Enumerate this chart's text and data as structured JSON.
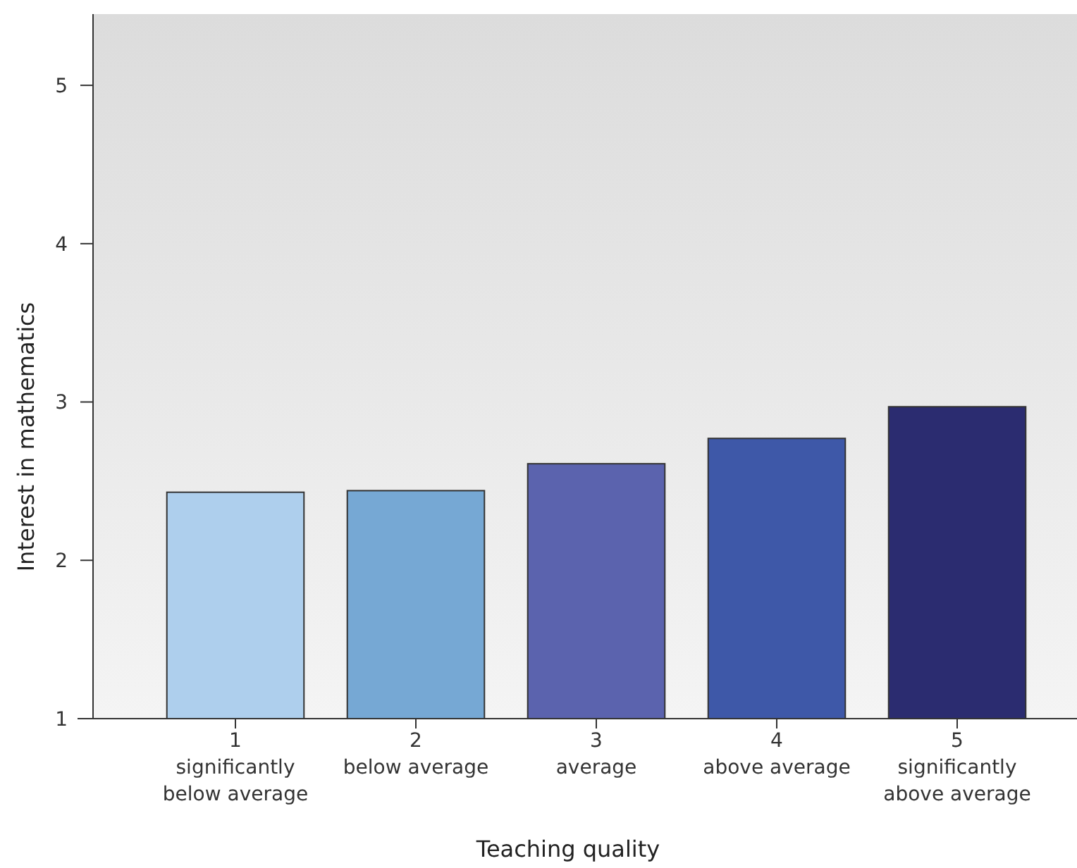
{
  "chart_data": {
    "type": "bar",
    "xlabel": "Teaching quality",
    "ylabel": "Interest in mathematics",
    "categories": [
      "1\nsignificantly\nbelow average",
      "2\nbelow average",
      "3\naverage",
      "4\nabove average",
      "5\nsignificantly\nabove average"
    ],
    "values": [
      2.43,
      2.44,
      2.61,
      2.77,
      2.97
    ],
    "colors": [
      "#aecfed",
      "#76a8d4",
      "#5b63ae",
      "#3e58a8",
      "#2b2c70"
    ],
    "ylim": [
      1,
      5.45
    ],
    "yticks": [
      1,
      2,
      3,
      4,
      5
    ]
  }
}
